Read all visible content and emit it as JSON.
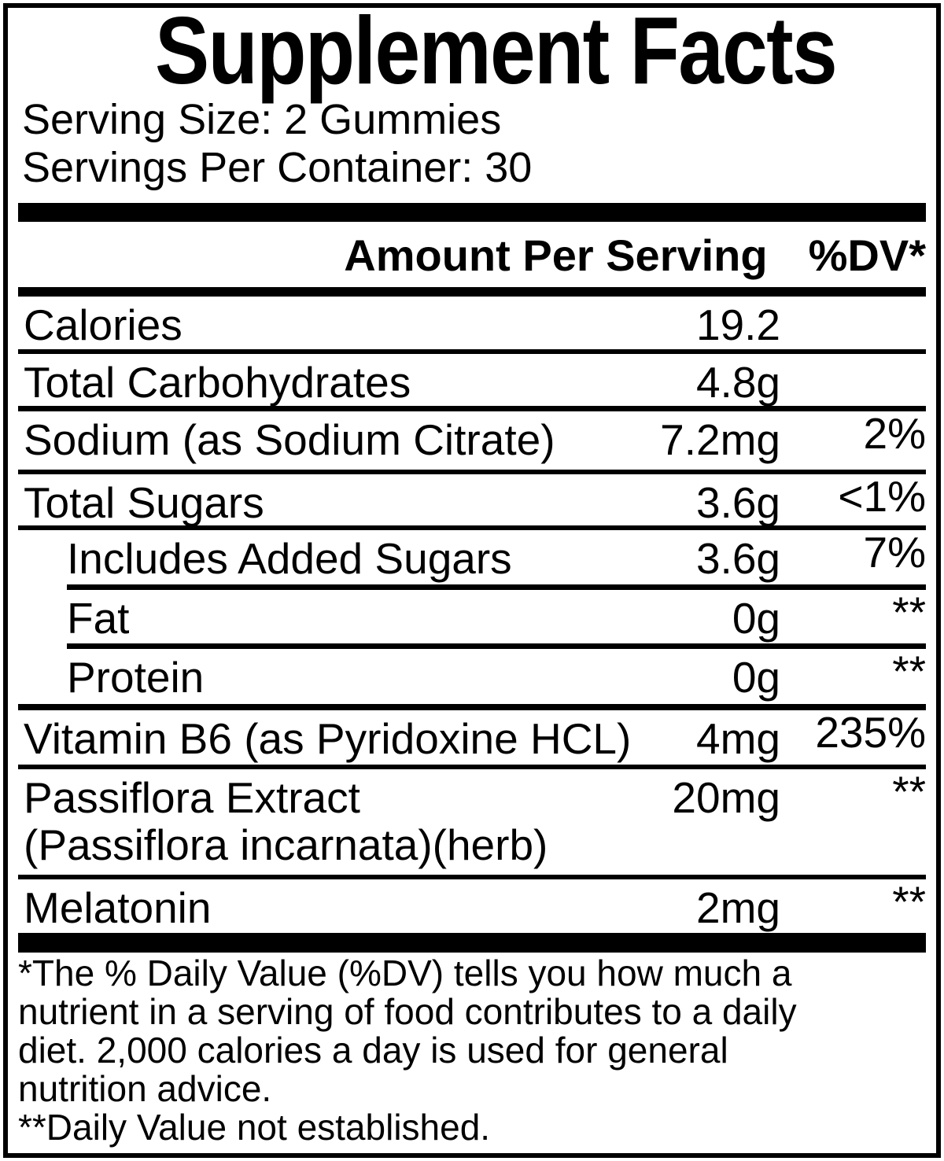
{
  "title": "Supplement Facts",
  "serving": {
    "size": "Serving Size: 2 Gummies",
    "per_container": "Servings Per Container: 30"
  },
  "header": {
    "amount_label": "Amount Per Serving",
    "dv_label": "%DV*"
  },
  "rows": [
    {
      "name": "Calories",
      "amount": "19.2",
      "dv": ""
    },
    {
      "name": "Total Carbohydrates",
      "amount": "4.8g",
      "dv": ""
    },
    {
      "name": "Sodium (as Sodium Citrate)",
      "amount": "7.2mg",
      "dv": "2%"
    },
    {
      "name": "Total Sugars",
      "amount": "3.6g",
      "dv": "<1%"
    },
    {
      "name": "Includes Added Sugars",
      "amount": "3.6g",
      "dv": "7%"
    },
    {
      "name": "Fat",
      "amount": "0g",
      "dv": "**"
    },
    {
      "name": "Protein",
      "amount": "0g",
      "dv": "**"
    },
    {
      "name": "Vitamin B6 (as Pyridoxine HCL)",
      "amount": "4mg",
      "dv": "235%"
    },
    {
      "name": "Passiflora Extract",
      "name_line2": "(Passiflora incarnata)(herb)",
      "amount": "20mg",
      "dv": "**"
    },
    {
      "name": "Melatonin",
      "amount": "2mg",
      "dv": "**"
    }
  ],
  "footnotes": {
    "lines": [
      "*The % Daily Value (%DV) tells you how much a",
      "nutrient in a serving of food contributes to a daily",
      "diet. 2,000 calories a day is used for general",
      "nutrition advice.",
      "**Daily Value not established."
    ]
  },
  "colors": {
    "text": "#000000",
    "background": "#ffffff"
  }
}
